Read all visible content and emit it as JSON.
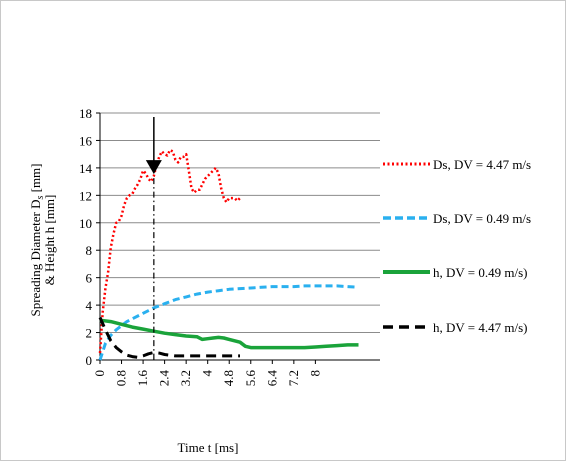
{
  "chart_data": {
    "type": "line",
    "ylabel": "Spreading Diameter  D_s [mm] & Height h [mm]",
    "ylabel_line1": "Spreading Diameter  D",
    "ylabel_sub": "s",
    "ylabel_unit": " [mm]",
    "ylabel_line2": "& Height h [mm]",
    "xlabel": "Time t [ms]",
    "ylim": [
      0,
      18
    ],
    "yticks": [
      0,
      2,
      4,
      6,
      8,
      10,
      12,
      14,
      16,
      18
    ],
    "xlim": [
      0,
      10.4
    ],
    "xticks": [
      "0",
      "0.8",
      "1.6",
      "2.4",
      "3.2",
      "4",
      "4.8",
      "5.6",
      "6.4",
      "7.2",
      "8"
    ],
    "grid": "horizontal",
    "legend_position": "right",
    "arrow_annotation": {
      "x": 2.0,
      "y": 13.4
    },
    "series": [
      {
        "name": "Ds, DV = 4.47 m/s",
        "color": "#ff0000",
        "style": "dotted",
        "x": [
          0,
          0.1,
          0.2,
          0.3,
          0.4,
          0.5,
          0.6,
          0.7,
          0.8,
          0.9,
          1.0,
          1.1,
          1.2,
          1.3,
          1.4,
          1.5,
          1.6,
          1.7,
          1.8,
          1.9,
          2.0,
          2.1,
          2.2,
          2.3,
          2.4,
          2.5,
          2.6,
          2.7,
          2.8,
          2.9,
          3.0,
          3.1,
          3.2,
          3.3,
          3.4,
          3.5,
          3.6,
          3.7,
          3.8,
          3.9,
          4.0,
          4.1,
          4.2,
          4.3,
          4.4,
          4.5,
          4.6,
          4.7,
          4.8,
          4.9,
          5.0,
          5.1,
          5.2
        ],
        "y": [
          0.5,
          3.5,
          5.2,
          6.4,
          8.2,
          9.2,
          10.0,
          10.1,
          10.5,
          11.3,
          11.8,
          12.0,
          12.1,
          12.5,
          12.8,
          13.2,
          13.8,
          13.6,
          13.2,
          13.0,
          13.4,
          14.2,
          14.8,
          15.2,
          15.0,
          14.9,
          15.3,
          15.2,
          14.6,
          14.4,
          14.8,
          14.8,
          15.0,
          13.8,
          12.5,
          12.2,
          12.4,
          12.4,
          12.8,
          13.2,
          13.4,
          13.6,
          13.8,
          14.0,
          13.6,
          12.5,
          11.8,
          11.5,
          11.8,
          11.8,
          11.8,
          11.6,
          11.8
        ]
      },
      {
        "name": "Ds, DV = 0.49 m/s",
        "color": "#2ab0ef",
        "style": "dashed",
        "x": [
          0,
          0.2,
          0.4,
          0.6,
          0.8,
          1.0,
          1.2,
          1.6,
          2.0,
          2.4,
          2.8,
          3.2,
          3.6,
          4.0,
          4.4,
          4.8,
          5.2,
          5.6,
          6.0,
          6.4,
          6.8,
          7.2,
          7.6,
          8.0,
          8.4,
          8.8,
          9.2,
          9.6
        ],
        "y": [
          0,
          1.2,
          1.8,
          2.2,
          2.5,
          2.8,
          3.0,
          3.4,
          3.8,
          4.1,
          4.4,
          4.6,
          4.8,
          4.95,
          5.05,
          5.15,
          5.2,
          5.25,
          5.3,
          5.35,
          5.35,
          5.35,
          5.4,
          5.4,
          5.4,
          5.4,
          5.35,
          5.3
        ]
      },
      {
        "name": "h, DV = 0.49 m/s)",
        "color": "#1aa33a",
        "style": "solid",
        "x": [
          0,
          0.4,
          0.8,
          1.2,
          1.6,
          2.0,
          2.4,
          2.8,
          3.2,
          3.6,
          3.8,
          4.0,
          4.2,
          4.4,
          4.6,
          4.8,
          5.0,
          5.2,
          5.4,
          5.6,
          6.0,
          6.4,
          6.8,
          7.2,
          7.6,
          8.0,
          8.4,
          8.8,
          9.2,
          9.6
        ],
        "y": [
          2.9,
          2.8,
          2.6,
          2.4,
          2.25,
          2.1,
          1.95,
          1.85,
          1.75,
          1.7,
          1.5,
          1.55,
          1.6,
          1.65,
          1.6,
          1.5,
          1.4,
          1.3,
          1.0,
          0.9,
          0.9,
          0.9,
          0.9,
          0.9,
          0.9,
          0.95,
          1.0,
          1.05,
          1.1,
          1.1
        ]
      },
      {
        "name": "h, DV = 4.47 m/s)",
        "color": "#000000",
        "style": "dashed",
        "x": [
          0,
          0.2,
          0.4,
          0.6,
          0.8,
          1.0,
          1.2,
          1.4,
          1.6,
          1.8,
          2.0,
          2.2,
          2.4,
          2.6,
          2.8,
          3.0,
          3.2,
          3.4,
          3.6,
          3.8,
          4.0,
          4.2,
          4.4,
          4.6,
          4.8,
          5.0,
          5.2
        ],
        "y": [
          3.1,
          2.2,
          1.4,
          0.9,
          0.6,
          0.35,
          0.25,
          0.2,
          0.3,
          0.45,
          0.55,
          0.5,
          0.4,
          0.35,
          0.3,
          0.3,
          0.3,
          0.3,
          0.3,
          0.3,
          0.3,
          0.3,
          0.3,
          0.3,
          0.3,
          0.3,
          0.3
        ]
      }
    ]
  }
}
